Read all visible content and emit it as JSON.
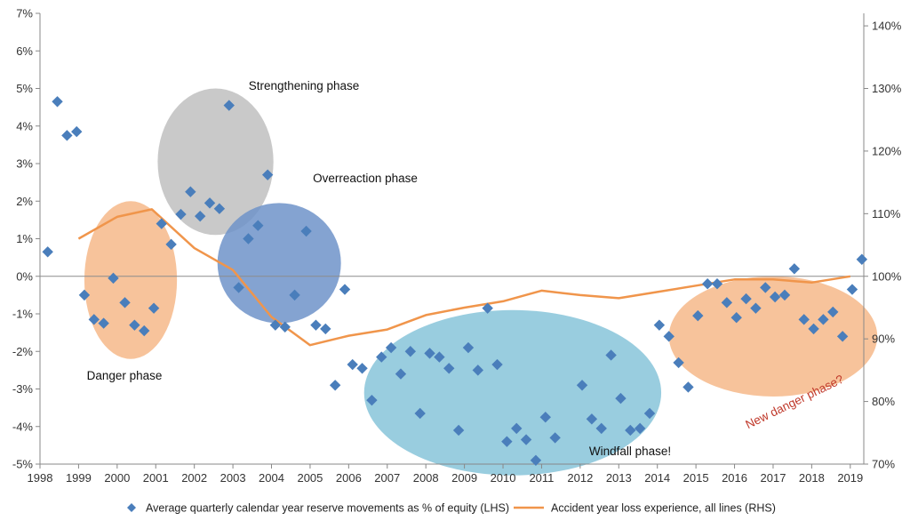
{
  "chart_data": {
    "type": "scatter",
    "x_ticks": [
      "1998",
      "1999",
      "2000",
      "2001",
      "2002",
      "2003",
      "2004",
      "2005",
      "2006",
      "2007",
      "2008",
      "2009",
      "2010",
      "2011",
      "2012",
      "2013",
      "2014",
      "2015",
      "2016",
      "2017",
      "2018",
      "2019"
    ],
    "y_left_ticks": [
      "7%",
      "6%",
      "5%",
      "4%",
      "3%",
      "2%",
      "1%",
      "0%",
      "-1%",
      "-2%",
      "-3%",
      "-4%",
      "-5%"
    ],
    "y_right_ticks": [
      "140%",
      "130%",
      "120%",
      "110%",
      "100%",
      "90%",
      "80%",
      "70%"
    ],
    "ylim_left": [
      -5,
      7
    ],
    "ylim_right": [
      70,
      142
    ],
    "xlim": [
      1998,
      2019.35
    ],
    "grid": false,
    "legend_position": "bottom",
    "colors": {
      "diamond": "#4a7ebb",
      "line": "#f0954b",
      "danger": "#f6b889",
      "strengthening": "#bfbfbf",
      "overreaction": "#6f93c9",
      "windfall": "#87c4d9",
      "new_danger": "#f6b889",
      "new_danger_text": "#c0392b"
    },
    "series": [
      {
        "name": "Average quarterly calendar year reserve movements as % of equity (LHS)",
        "type": "scatter",
        "axis": "left",
        "points": [
          [
            1998.2,
            0.65
          ],
          [
            1998.45,
            4.65
          ],
          [
            1998.7,
            3.75
          ],
          [
            1998.95,
            3.85
          ],
          [
            1999.15,
            -0.5
          ],
          [
            1999.4,
            -1.15
          ],
          [
            1999.65,
            -1.25
          ],
          [
            1999.9,
            -0.05
          ],
          [
            2000.2,
            -0.7
          ],
          [
            2000.45,
            -1.3
          ],
          [
            2000.7,
            -1.45
          ],
          [
            2000.95,
            -0.85
          ],
          [
            2001.15,
            1.4
          ],
          [
            2001.4,
            0.85
          ],
          [
            2001.65,
            1.65
          ],
          [
            2001.9,
            2.25
          ],
          [
            2002.15,
            1.6
          ],
          [
            2002.4,
            1.95
          ],
          [
            2002.65,
            1.8
          ],
          [
            2002.9,
            4.55
          ],
          [
            2003.15,
            -0.3
          ],
          [
            2003.4,
            1.0
          ],
          [
            2003.65,
            1.35
          ],
          [
            2003.9,
            2.7
          ],
          [
            2004.1,
            -1.3
          ],
          [
            2004.35,
            -1.35
          ],
          [
            2004.6,
            -0.5
          ],
          [
            2004.9,
            1.2
          ],
          [
            2005.15,
            -1.3
          ],
          [
            2005.4,
            -1.4
          ],
          [
            2005.65,
            -2.9
          ],
          [
            2005.9,
            -0.35
          ],
          [
            2006.1,
            -2.35
          ],
          [
            2006.35,
            -2.45
          ],
          [
            2006.6,
            -3.3
          ],
          [
            2006.85,
            -2.15
          ],
          [
            2007.1,
            -1.9
          ],
          [
            2007.35,
            -2.6
          ],
          [
            2007.6,
            -2.0
          ],
          [
            2007.85,
            -3.65
          ],
          [
            2008.1,
            -2.05
          ],
          [
            2008.35,
            -2.15
          ],
          [
            2008.6,
            -2.45
          ],
          [
            2008.85,
            -4.1
          ],
          [
            2009.1,
            -1.9
          ],
          [
            2009.35,
            -2.5
          ],
          [
            2009.6,
            -0.85
          ],
          [
            2009.85,
            -2.35
          ],
          [
            2010.1,
            -4.4
          ],
          [
            2010.35,
            -4.05
          ],
          [
            2010.6,
            -4.35
          ],
          [
            2010.85,
            -4.9
          ],
          [
            2011.1,
            -3.75
          ],
          [
            2011.35,
            -4.3
          ],
          [
            2012.05,
            -2.9
          ],
          [
            2012.3,
            -3.8
          ],
          [
            2012.55,
            -4.05
          ],
          [
            2012.8,
            -2.1
          ],
          [
            2013.05,
            -3.25
          ],
          [
            2013.3,
            -4.1
          ],
          [
            2013.55,
            -4.05
          ],
          [
            2013.8,
            -3.65
          ],
          [
            2014.05,
            -1.3
          ],
          [
            2014.3,
            -1.6
          ],
          [
            2014.55,
            -2.3
          ],
          [
            2014.8,
            -2.95
          ],
          [
            2015.05,
            -1.05
          ],
          [
            2015.3,
            -0.2
          ],
          [
            2015.55,
            -0.2
          ],
          [
            2015.8,
            -0.7
          ],
          [
            2016.05,
            -1.1
          ],
          [
            2016.3,
            -0.6
          ],
          [
            2016.55,
            -0.85
          ],
          [
            2016.8,
            -0.3
          ],
          [
            2017.05,
            -0.55
          ],
          [
            2017.3,
            -0.5
          ],
          [
            2017.55,
            0.2
          ],
          [
            2017.8,
            -1.15
          ],
          [
            2018.05,
            -1.4
          ],
          [
            2018.3,
            -1.15
          ],
          [
            2018.55,
            -0.95
          ],
          [
            2018.8,
            -1.6
          ],
          [
            2019.05,
            -0.35
          ],
          [
            2019.3,
            0.45
          ]
        ]
      },
      {
        "name": "Accident year loss experience, all lines (RHS)",
        "type": "line",
        "axis": "right",
        "points": [
          [
            1999,
            106
          ],
          [
            2000,
            109.5
          ],
          [
            2000.9,
            110.7
          ],
          [
            2002,
            104.5
          ],
          [
            2003,
            101
          ],
          [
            2004,
            93.5
          ],
          [
            2005,
            89
          ],
          [
            2006,
            90.5
          ],
          [
            2007,
            91.5
          ],
          [
            2008,
            93.8
          ],
          [
            2009,
            95
          ],
          [
            2010,
            96
          ],
          [
            2011,
            97.7
          ],
          [
            2012,
            97
          ],
          [
            2013,
            96.5
          ],
          [
            2014,
            97.5
          ],
          [
            2015,
            98.5
          ],
          [
            2016,
            99.5
          ],
          [
            2017,
            99.5
          ],
          [
            2018,
            99
          ],
          [
            2019,
            100
          ]
        ]
      }
    ],
    "phases": [
      {
        "key": "danger",
        "label": "Danger phase",
        "cx": 2000.35,
        "cy": -0.1,
        "rx": 1.2,
        "ry": 2.1
      },
      {
        "key": "strengthening",
        "label": "Strengthening phase",
        "cx": 2002.55,
        "cy": 3.05,
        "rx": 1.5,
        "ry": 1.95
      },
      {
        "key": "overreaction",
        "label": "Overreaction phase",
        "cx": 2004.2,
        "cy": 0.35,
        "rx": 1.6,
        "ry": 1.6
      },
      {
        "key": "windfall",
        "label": "Windfall phase!",
        "cx": 2010.25,
        "cy": -3.1,
        "rx": 3.85,
        "ry": 2.2
      },
      {
        "key": "new_danger",
        "label": "New danger phase?",
        "cx": 2017.0,
        "cy": -1.6,
        "rx": 2.7,
        "ry": 1.6
      }
    ]
  }
}
